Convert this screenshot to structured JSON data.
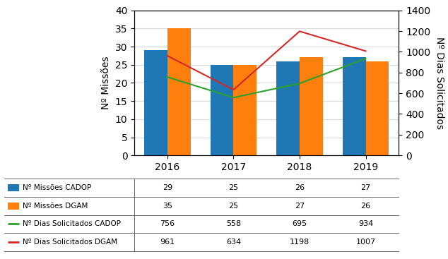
{
  "chart_data": {
    "type": "bar",
    "categories": [
      "2016",
      "2017",
      "2018",
      "2019"
    ],
    "ylabel": "Nº Missões",
    "y2label": "Nº Dias Solicitados",
    "ylim": [
      0,
      40
    ],
    "yticks": [
      0,
      5,
      10,
      15,
      20,
      25,
      30,
      35,
      40
    ],
    "y2lim": [
      0,
      1400
    ],
    "y2ticks": [
      0,
      200,
      400,
      600,
      800,
      1000,
      1200,
      1400
    ],
    "grid": true,
    "series": [
      {
        "name": "Nº Missões CADOP",
        "type": "bar",
        "values": [
          29,
          25,
          26,
          27
        ]
      },
      {
        "name": "Nº Missões DGAM",
        "type": "bar",
        "values": [
          35,
          25,
          27,
          26
        ]
      },
      {
        "name": "Nº Dias Solicitados CADOP",
        "type": "line",
        "axis": "y2",
        "values": [
          756,
          558,
          695,
          934
        ]
      },
      {
        "name": "Nº Dias Solicitados DGAM",
        "type": "line",
        "axis": "y2",
        "values": [
          961,
          634,
          1198,
          1007
        ]
      }
    ]
  }
}
